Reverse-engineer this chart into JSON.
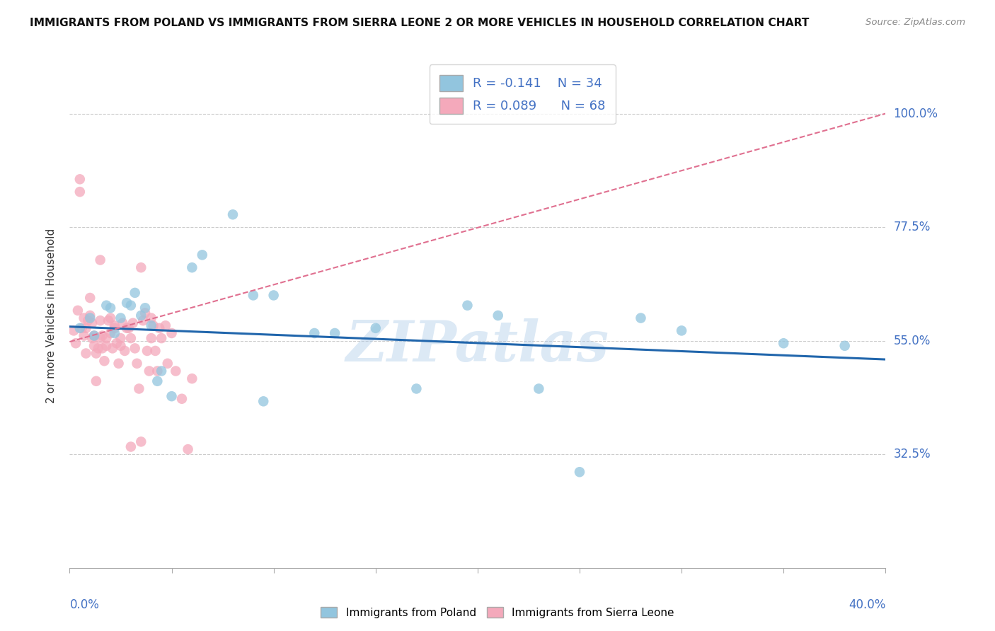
{
  "title": "IMMIGRANTS FROM POLAND VS IMMIGRANTS FROM SIERRA LEONE 2 OR MORE VEHICLES IN HOUSEHOLD CORRELATION CHART",
  "source": "Source: ZipAtlas.com",
  "ylabel": "2 or more Vehicles in Household",
  "ytick_vals": [
    0.325,
    0.55,
    0.775,
    1.0
  ],
  "ytick_labels": [
    "32.5%",
    "55.0%",
    "77.5%",
    "100.0%"
  ],
  "xlim": [
    0.0,
    0.4
  ],
  "ylim": [
    0.1,
    1.1
  ],
  "legend_R_poland": "R = -0.141",
  "legend_N_poland": "N = 34",
  "legend_R_sierra": "R = 0.089",
  "legend_N_sierra": "N = 68",
  "poland_color": "#92C5DE",
  "sierra_color": "#F4A9BB",
  "poland_line_color": "#2166AC",
  "sierra_line_color": "#E07090",
  "watermark": "ZIPatlas",
  "poland_scatter_x": [
    0.005,
    0.01,
    0.012,
    0.018,
    0.02,
    0.022,
    0.025,
    0.028,
    0.03,
    0.032,
    0.035,
    0.037,
    0.04,
    0.043,
    0.045,
    0.05,
    0.06,
    0.065,
    0.08,
    0.09,
    0.095,
    0.1,
    0.12,
    0.13,
    0.15,
    0.17,
    0.21,
    0.25,
    0.28,
    0.3,
    0.35,
    0.38,
    0.195,
    0.23
  ],
  "poland_scatter_y": [
    0.575,
    0.595,
    0.56,
    0.62,
    0.615,
    0.565,
    0.595,
    0.625,
    0.62,
    0.645,
    0.6,
    0.615,
    0.58,
    0.47,
    0.49,
    0.44,
    0.695,
    0.72,
    0.8,
    0.64,
    0.43,
    0.64,
    0.565,
    0.565,
    0.575,
    0.455,
    0.6,
    0.29,
    0.595,
    0.57,
    0.545,
    0.54,
    0.62,
    0.455
  ],
  "sierra_scatter_x": [
    0.002,
    0.003,
    0.004,
    0.005,
    0.005,
    0.006,
    0.007,
    0.007,
    0.008,
    0.008,
    0.009,
    0.01,
    0.01,
    0.011,
    0.011,
    0.012,
    0.012,
    0.013,
    0.013,
    0.014,
    0.015,
    0.015,
    0.016,
    0.016,
    0.017,
    0.018,
    0.018,
    0.019,
    0.02,
    0.02,
    0.021,
    0.022,
    0.022,
    0.023,
    0.024,
    0.025,
    0.025,
    0.026,
    0.027,
    0.028,
    0.029,
    0.03,
    0.031,
    0.032,
    0.033,
    0.034,
    0.035,
    0.036,
    0.037,
    0.038,
    0.039,
    0.04,
    0.041,
    0.042,
    0.043,
    0.044,
    0.045,
    0.047,
    0.048,
    0.05,
    0.052,
    0.055,
    0.058,
    0.06,
    0.03,
    0.035,
    0.04,
    0.015
  ],
  "sierra_scatter_y": [
    0.57,
    0.545,
    0.61,
    0.845,
    0.87,
    0.575,
    0.595,
    0.56,
    0.525,
    0.575,
    0.59,
    0.6,
    0.635,
    0.585,
    0.555,
    0.56,
    0.54,
    0.525,
    0.47,
    0.535,
    0.59,
    0.555,
    0.535,
    0.56,
    0.51,
    0.54,
    0.555,
    0.59,
    0.565,
    0.595,
    0.535,
    0.575,
    0.58,
    0.545,
    0.505,
    0.54,
    0.555,
    0.585,
    0.53,
    0.575,
    0.575,
    0.555,
    0.585,
    0.535,
    0.505,
    0.455,
    0.695,
    0.59,
    0.605,
    0.53,
    0.49,
    0.555,
    0.58,
    0.53,
    0.49,
    0.575,
    0.555,
    0.58,
    0.505,
    0.565,
    0.49,
    0.435,
    0.335,
    0.475,
    0.34,
    0.35,
    0.595,
    0.71
  ],
  "poland_line_x0": 0.0,
  "poland_line_x1": 0.4,
  "poland_line_y0": 0.578,
  "poland_line_y1": 0.513,
  "sierra_line_x0": 0.0,
  "sierra_line_x1": 0.4,
  "sierra_line_y0": 0.548,
  "sierra_line_y1": 1.0
}
